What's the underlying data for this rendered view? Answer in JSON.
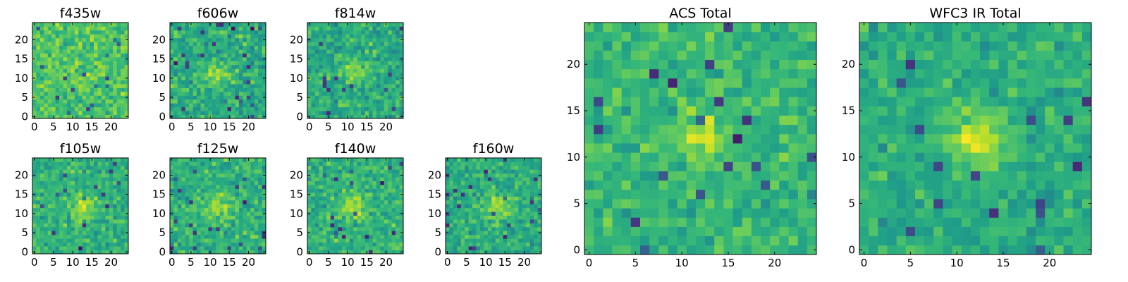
{
  "colormap": "viridis",
  "frame_color": "#000000",
  "chart_data": [
    {
      "type": "heatmap",
      "title": "f435w",
      "grid_size": 25,
      "xlim": [
        0,
        24
      ],
      "ylim": [
        0,
        24
      ],
      "xticks": [
        0,
        5,
        10,
        15,
        20
      ],
      "yticks": [
        0,
        5,
        10,
        15,
        20
      ],
      "value_range": [
        0,
        1
      ],
      "xlabel": "",
      "ylabel": "",
      "seed": 11,
      "peak": {
        "x": 12,
        "y": 11,
        "amp": 0.03
      },
      "mean": 0.72,
      "spread": 0.22
    },
    {
      "type": "heatmap",
      "title": "f606w",
      "grid_size": 25,
      "xlim": [
        0,
        24
      ],
      "ylim": [
        0,
        24
      ],
      "xticks": [
        0,
        5,
        10,
        15,
        20
      ],
      "yticks": [
        0,
        5,
        10,
        15,
        20
      ],
      "value_range": [
        0,
        1
      ],
      "xlabel": "",
      "ylabel": "",
      "seed": 23,
      "peak": {
        "x": 12,
        "y": 11,
        "amp": 0.25
      },
      "mean": 0.62,
      "spread": 0.24
    },
    {
      "type": "heatmap",
      "title": "f814w",
      "grid_size": 25,
      "xlim": [
        0,
        24
      ],
      "ylim": [
        0,
        24
      ],
      "xticks": [
        0,
        5,
        10,
        15,
        20
      ],
      "yticks": [
        0,
        5,
        10,
        15,
        20
      ],
      "value_range": [
        0,
        1
      ],
      "xlabel": "",
      "ylabel": "",
      "seed": 37,
      "peak": {
        "x": 12,
        "y": 12,
        "amp": 0.18
      },
      "mean": 0.62,
      "spread": 0.24
    },
    {
      "type": "heatmap",
      "title": "f105w",
      "grid_size": 25,
      "xlim": [
        0,
        24
      ],
      "ylim": [
        0,
        24
      ],
      "xticks": [
        0,
        5,
        10,
        15,
        20
      ],
      "yticks": [
        0,
        5,
        10,
        15,
        20
      ],
      "value_range": [
        0,
        1
      ],
      "xlabel": "",
      "ylabel": "",
      "seed": 41,
      "peak": {
        "x": 13,
        "y": 12,
        "amp": 0.28
      },
      "mean": 0.64,
      "spread": 0.22
    },
    {
      "type": "heatmap",
      "title": "f125w",
      "grid_size": 25,
      "xlim": [
        0,
        24
      ],
      "ylim": [
        0,
        24
      ],
      "xticks": [
        0,
        5,
        10,
        15,
        20
      ],
      "yticks": [
        0,
        5,
        10,
        15,
        20
      ],
      "value_range": [
        0,
        1
      ],
      "xlabel": "",
      "ylabel": "",
      "seed": 53,
      "peak": {
        "x": 12,
        "y": 12,
        "amp": 0.22
      },
      "mean": 0.64,
      "spread": 0.22
    },
    {
      "type": "heatmap",
      "title": "f140w",
      "grid_size": 25,
      "xlim": [
        0,
        24
      ],
      "ylim": [
        0,
        24
      ],
      "xticks": [
        0,
        5,
        10,
        15,
        20
      ],
      "yticks": [
        0,
        5,
        10,
        15,
        20
      ],
      "value_range": [
        0,
        1
      ],
      "xlabel": "",
      "ylabel": "",
      "seed": 67,
      "peak": {
        "x": 12,
        "y": 12,
        "amp": 0.25
      },
      "mean": 0.64,
      "spread": 0.22
    },
    {
      "type": "heatmap",
      "title": "f160w",
      "grid_size": 25,
      "xlim": [
        0,
        24
      ],
      "ylim": [
        0,
        24
      ],
      "xticks": [
        0,
        5,
        10,
        15,
        20
      ],
      "yticks": [
        0,
        5,
        10,
        15,
        20
      ],
      "value_range": [
        0,
        1
      ],
      "xlabel": "",
      "ylabel": "",
      "seed": 79,
      "peak": {
        "x": 13,
        "y": 12,
        "amp": 0.28
      },
      "mean": 0.62,
      "spread": 0.22
    },
    {
      "type": "heatmap",
      "title": "ACS Total",
      "grid_size": 25,
      "xlim": [
        0,
        24
      ],
      "ylim": [
        0,
        24
      ],
      "xticks": [
        0,
        5,
        10,
        15,
        20
      ],
      "yticks": [
        0,
        5,
        10,
        15,
        20
      ],
      "value_range": [
        0,
        1
      ],
      "xlabel": "",
      "ylabel": "",
      "seed": 97,
      "peak": {
        "x": 12,
        "y": 12,
        "amp": 0.22
      },
      "mean": 0.66,
      "spread": 0.2
    },
    {
      "type": "heatmap",
      "title": "WFC3 IR Total",
      "grid_size": 25,
      "xlim": [
        0,
        24
      ],
      "ylim": [
        0,
        24
      ],
      "xticks": [
        0,
        5,
        10,
        15,
        20
      ],
      "yticks": [
        0,
        5,
        10,
        15,
        20
      ],
      "value_range": [
        0,
        1
      ],
      "xlabel": "",
      "ylabel": "",
      "seed": 113,
      "peak": {
        "x": 12,
        "y": 12,
        "amp": 0.3
      },
      "mean": 0.62,
      "spread": 0.18
    }
  ]
}
